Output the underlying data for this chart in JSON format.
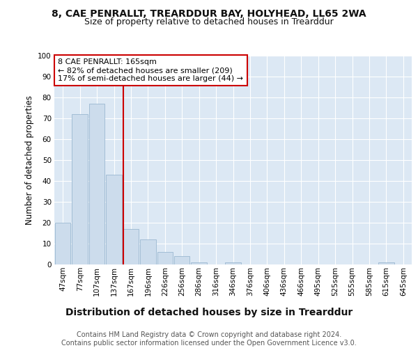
{
  "title1": "8, CAE PENRALLT, TREARDDUR BAY, HOLYHEAD, LL65 2WA",
  "title2": "Size of property relative to detached houses in Trearddur",
  "xlabel": "Distribution of detached houses by size in Trearddur",
  "ylabel": "Number of detached properties",
  "categories": [
    "47sqm",
    "77sqm",
    "107sqm",
    "137sqm",
    "167sqm",
    "196sqm",
    "226sqm",
    "256sqm",
    "286sqm",
    "316sqm",
    "346sqm",
    "376sqm",
    "406sqm",
    "436sqm",
    "466sqm",
    "495sqm",
    "525sqm",
    "555sqm",
    "585sqm",
    "615sqm",
    "645sqm"
  ],
  "values": [
    20,
    72,
    77,
    43,
    17,
    12,
    6,
    4,
    1,
    0,
    1,
    0,
    0,
    0,
    0,
    0,
    0,
    0,
    0,
    1,
    0
  ],
  "bar_color": "#ccdcec",
  "bar_edge_color": "#9ab8d0",
  "vline_x_index": 4,
  "vline_color": "#cc0000",
  "annotation_text": "8 CAE PENRALLT: 165sqm\n← 82% of detached houses are smaller (209)\n17% of semi-detached houses are larger (44) →",
  "annotation_box_color": "#ffffff",
  "annotation_box_edge": "#cc0000",
  "footer": "Contains HM Land Registry data © Crown copyright and database right 2024.\nContains public sector information licensed under the Open Government Licence v3.0.",
  "ylim": [
    0,
    100
  ],
  "yticks": [
    0,
    10,
    20,
    30,
    40,
    50,
    60,
    70,
    80,
    90,
    100
  ],
  "fig_bg_color": "#ffffff",
  "plot_bg_color": "#dce8f4",
  "title1_fontsize": 10,
  "title2_fontsize": 9,
  "xlabel_fontsize": 10,
  "ylabel_fontsize": 8.5,
  "tick_fontsize": 7.5,
  "annotation_fontsize": 8,
  "footer_fontsize": 7
}
